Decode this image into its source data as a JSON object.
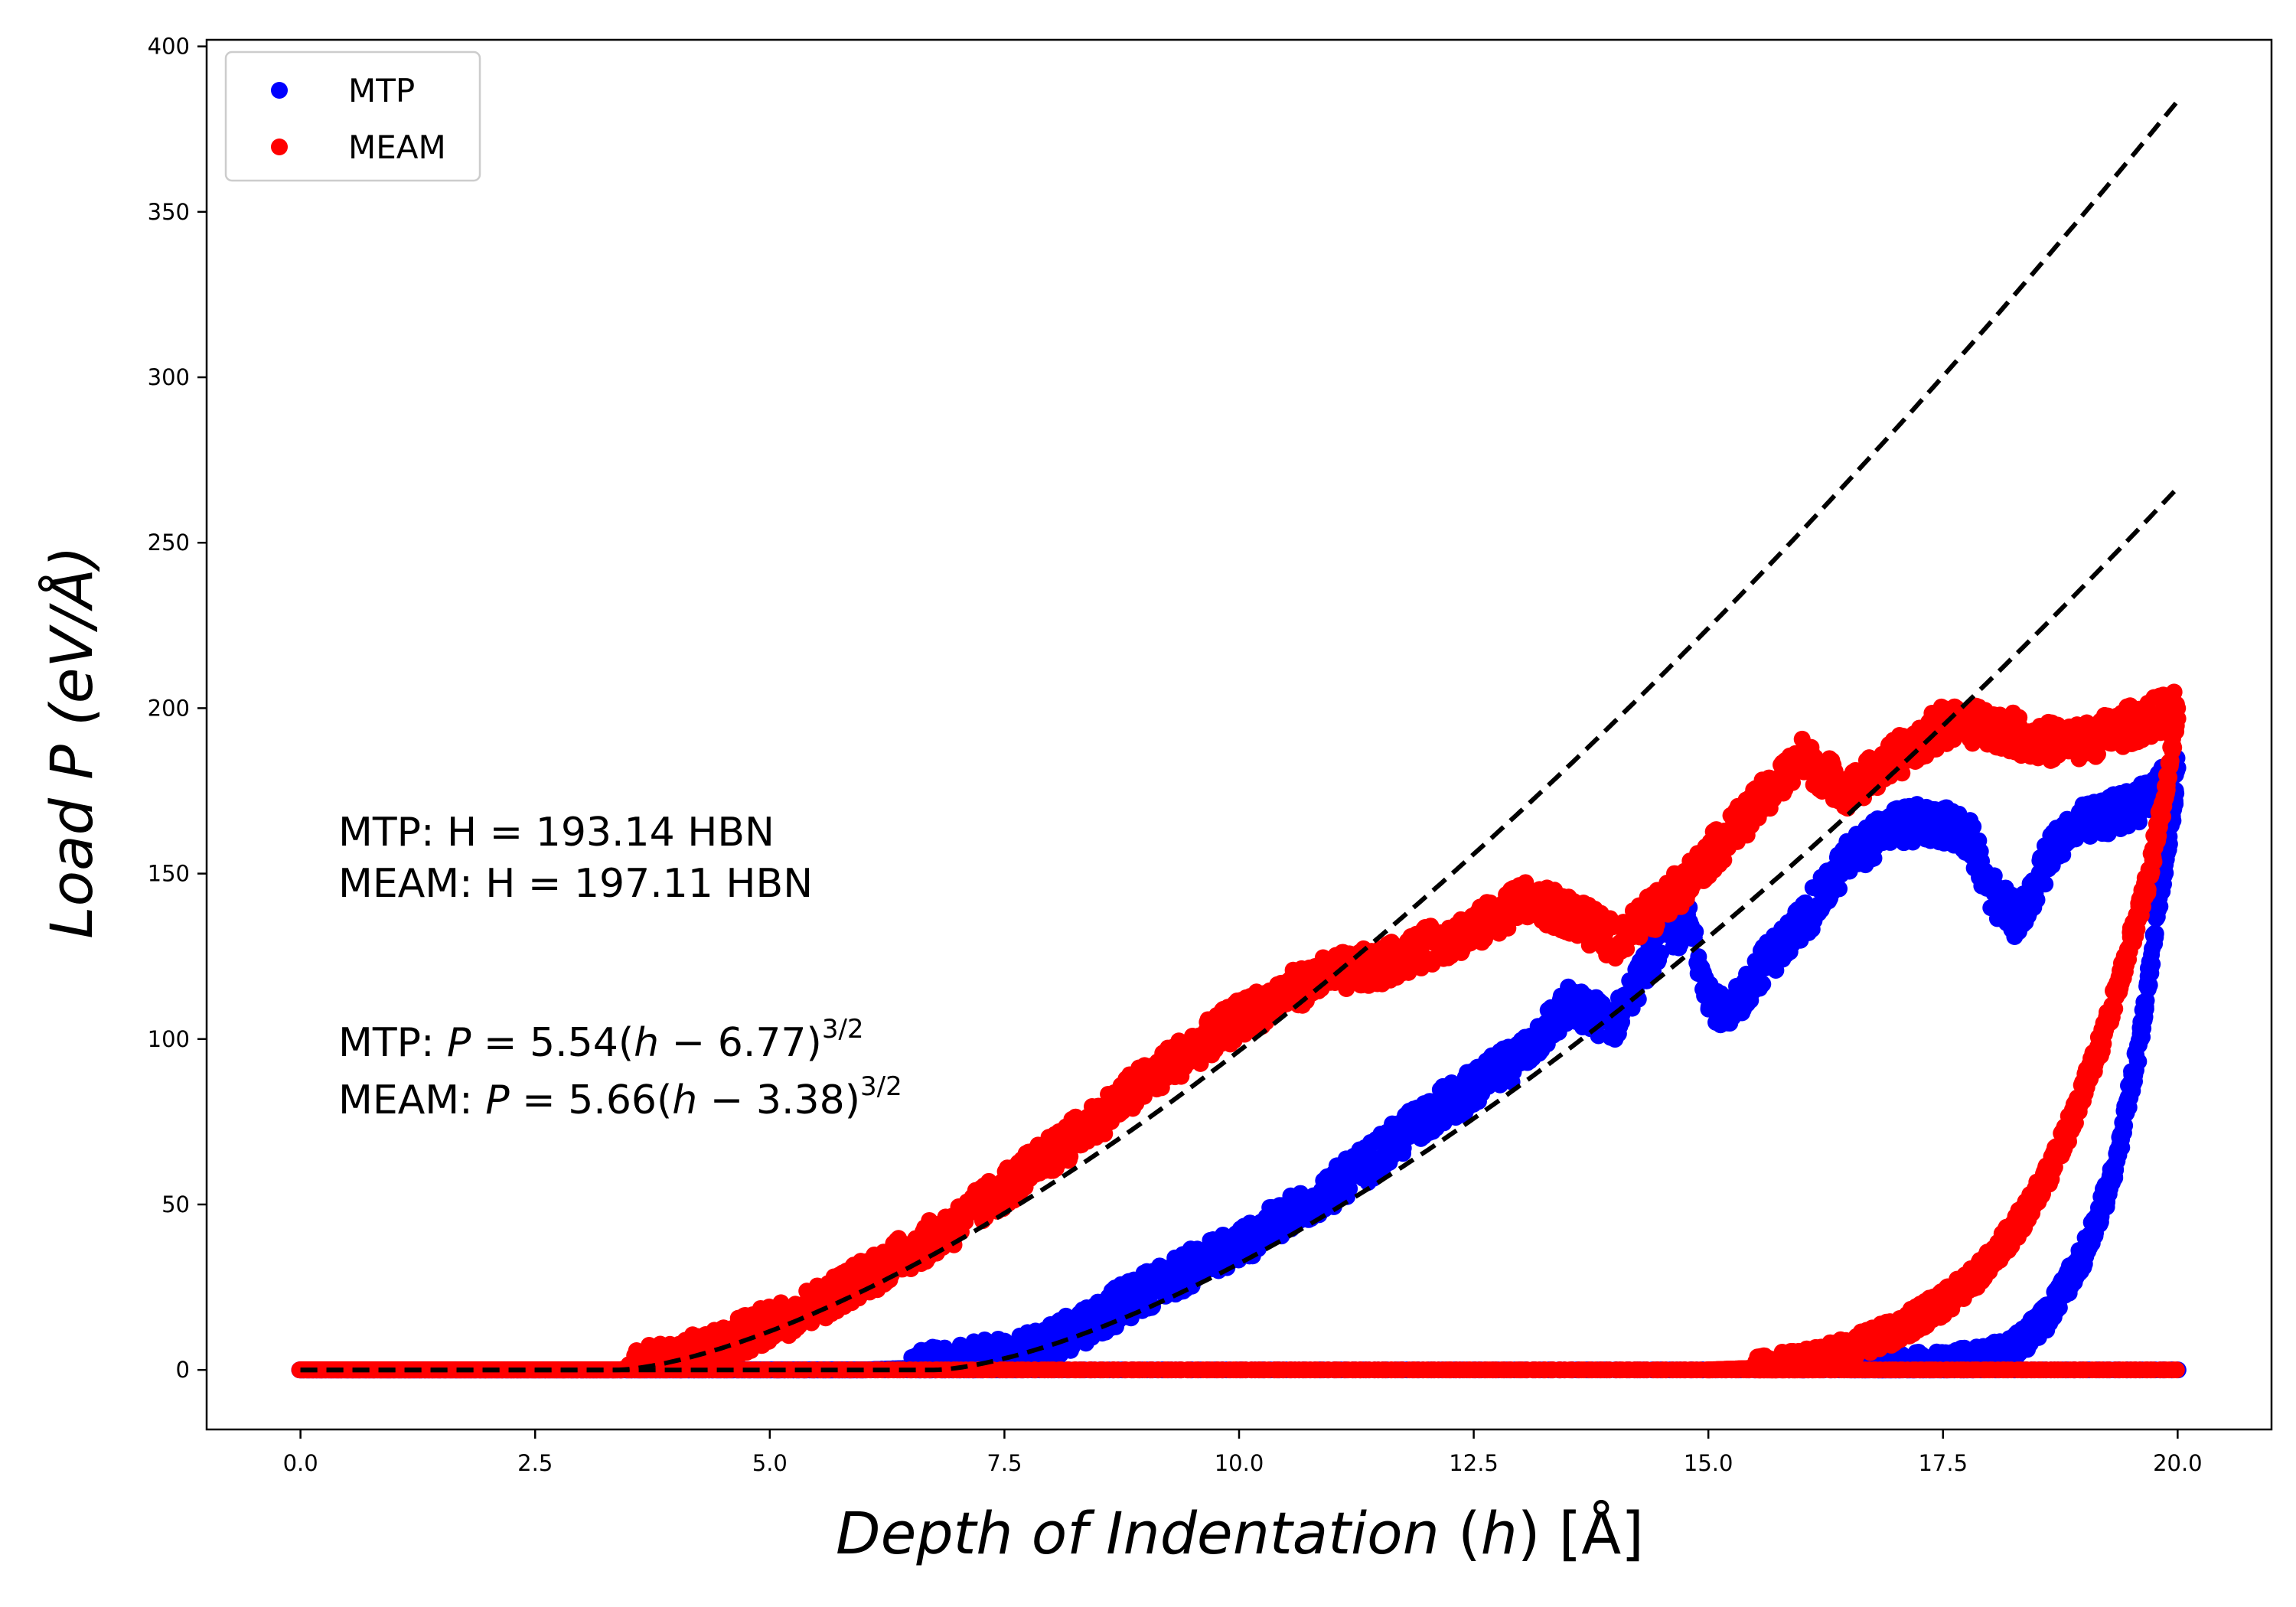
{
  "chart_data": {
    "type": "scatter",
    "title": "",
    "xlabel": "Depth of Indentation (h) [Å]",
    "xlabel_parts": {
      "italic": "Depth of Indentation",
      "h_open": "(",
      "h": "h",
      "h_close": ")",
      "unit": "[Å]"
    },
    "ylabel": "Load P (eV/Å)",
    "ylabel_parts": {
      "text": "Load",
      "p": "P",
      "unit": "(eV/Å)"
    },
    "xlim": [
      -1.0,
      21.0
    ],
    "ylim": [
      -18,
      402
    ],
    "xticks": [
      0.0,
      2.5,
      5.0,
      7.5,
      10.0,
      12.5,
      15.0,
      17.5,
      20.0
    ],
    "xtick_labels": [
      "0.0",
      "2.5",
      "5.0",
      "7.5",
      "10.0",
      "12.5",
      "15.0",
      "17.5",
      "20.0"
    ],
    "yticks": [
      0,
      50,
      100,
      150,
      200,
      250,
      300,
      350,
      400
    ],
    "ytick_labels": [
      "0",
      "50",
      "100",
      "150",
      "200",
      "250",
      "300",
      "350",
      "400"
    ],
    "grid": false,
    "legend_position": "top-left",
    "legend": [
      {
        "label": "MTP",
        "color": "#0000ff"
      },
      {
        "label": "MEAM",
        "color": "#ff0000"
      }
    ],
    "annotations": {
      "mtp_hardness": "MTP: H = 193.14 HBN",
      "meam_hardness": "MEAM: H = 197.11 HBN",
      "mtp_fit_prefix": "MTP: ",
      "meam_fit_prefix": "MEAM: ",
      "fit_lhs": "P",
      "fit_eq": " = ",
      "mtp_fit_coeff": "5.54(",
      "meam_fit_coeff": "5.66(",
      "fit_h": "h",
      "fit_minus": " − ",
      "mtp_fit_h0": "6.77)",
      "meam_fit_h0": "3.38)",
      "fit_exp": "3/2"
    },
    "fits": [
      {
        "name": "MTP fit",
        "style": "dashed",
        "color": "#000000",
        "a": 5.54,
        "h0": 6.77,
        "exponent": 1.5,
        "h_range": [
          0,
          20
        ]
      },
      {
        "name": "MEAM fit",
        "style": "dashed",
        "color": "#000000",
        "a": 5.66,
        "h0": 3.38,
        "exponent": 1.5,
        "h_range": [
          0,
          20
        ]
      }
    ],
    "series": [
      {
        "name": "MTP",
        "color": "#0000ff",
        "loading": {
          "x": [
            0.0,
            6.0,
            6.5,
            7.0,
            7.5,
            8.0,
            8.5,
            9.0,
            9.5,
            10.0,
            10.5,
            11.0,
            11.5,
            12.0,
            12.5,
            13.0,
            13.5,
            14.0,
            14.5,
            14.8,
            15.0,
            15.2,
            15.5,
            16.0,
            16.5,
            17.0,
            17.5,
            17.8,
            18.0,
            18.3,
            18.7,
            19.0,
            19.5,
            20.0
          ],
          "y": [
            0,
            0,
            0.5,
            2,
            4,
            9,
            16,
            24,
            31,
            38,
            46,
            55,
            65,
            77,
            85,
            95,
            110,
            105,
            130,
            135,
            115,
            105,
            120,
            135,
            155,
            165,
            165,
            160,
            145,
            135,
            160,
            165,
            170,
            180
          ]
        },
        "unloading": {
          "x": [
            20.0,
            19.9,
            19.8,
            19.7,
            19.6,
            19.5,
            19.4,
            19.3,
            19.2,
            19.1,
            19.0,
            18.8,
            18.6,
            18.4,
            18.2,
            18.0,
            17.8,
            17.5,
            17.0,
            16.5,
            16.0
          ],
          "y": [
            180,
            160,
            140,
            120,
            100,
            85,
            70,
            58,
            50,
            42,
            35,
            25,
            16,
            10,
            6,
            4,
            3,
            2,
            1,
            0.5,
            0
          ]
        },
        "baseline": {
          "x": [
            0.0,
            20.0
          ],
          "y": [
            0,
            0
          ]
        }
      },
      {
        "name": "MEAM",
        "color": "#ff0000",
        "loading": {
          "x": [
            0.0,
            3.4,
            3.8,
            4.2,
            4.6,
            5.0,
            5.5,
            6.0,
            6.5,
            7.0,
            7.5,
            8.0,
            8.5,
            9.0,
            9.5,
            10.0,
            10.5,
            11.0,
            11.5,
            12.0,
            12.5,
            13.0,
            13.5,
            14.0,
            14.5,
            15.0,
            15.5,
            16.0,
            16.5,
            17.0,
            17.5,
            18.0,
            18.5,
            19.0,
            19.5,
            20.0
          ],
          "y": [
            0,
            0,
            2,
            5,
            9,
            14,
            20,
            28,
            36,
            44,
            55,
            65,
            76,
            87,
            97,
            106,
            114,
            120,
            122,
            128,
            133,
            142,
            138,
            130,
            140,
            155,
            170,
            185,
            175,
            185,
            195,
            195,
            190,
            190,
            195,
            200
          ]
        },
        "unloading": {
          "x": [
            20.0,
            19.9,
            19.8,
            19.7,
            19.6,
            19.5,
            19.4,
            19.3,
            19.2,
            19.0,
            18.8,
            18.6,
            18.4,
            18.2,
            18.0,
            17.8,
            17.5,
            17.0,
            16.5,
            16.0,
            15.5,
            15.0
          ],
          "y": [
            200,
            180,
            165,
            150,
            140,
            130,
            120,
            110,
            100,
            85,
            70,
            58,
            48,
            40,
            33,
            27,
            20,
            12,
            6,
            2,
            0.5,
            0
          ]
        },
        "baseline": {
          "x": [
            0.0,
            20.0
          ],
          "y": [
            0,
            0
          ]
        }
      }
    ]
  }
}
